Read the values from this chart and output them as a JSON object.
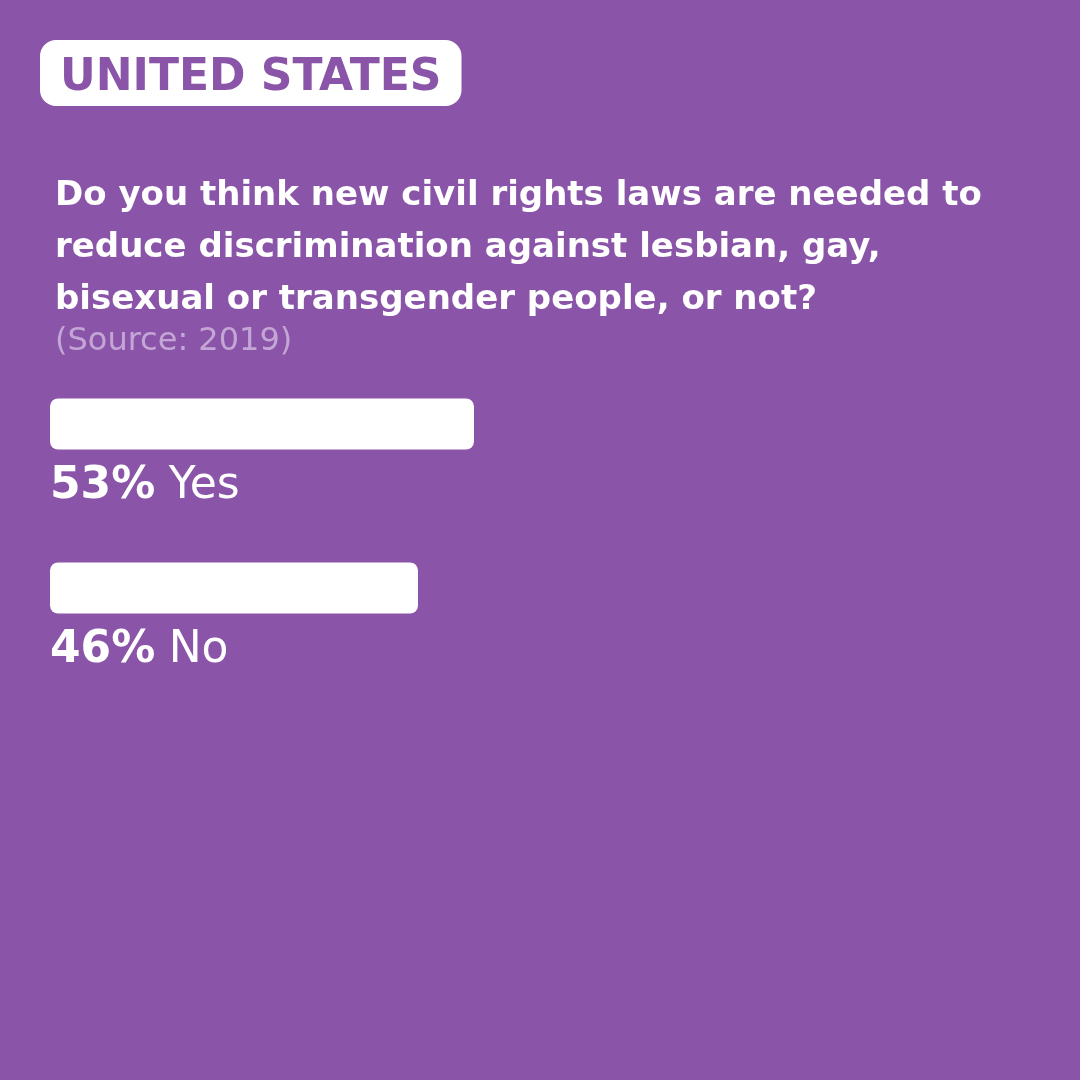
{
  "chart_data": {
    "type": "bar",
    "orientation": "horizontal",
    "title": "UNITED STATES",
    "subtitle": "Do you think new civil rights laws are needed to reduce discrimination against lesbian, gay, bisexual or transgender people, or not?",
    "annotations": [
      "(Source: 2019)"
    ],
    "categories": [
      "Yes",
      "No"
    ],
    "values": [
      53,
      46
    ],
    "value_labels": [
      "53%",
      "46%"
    ],
    "color": "#ffffff"
  }
}
